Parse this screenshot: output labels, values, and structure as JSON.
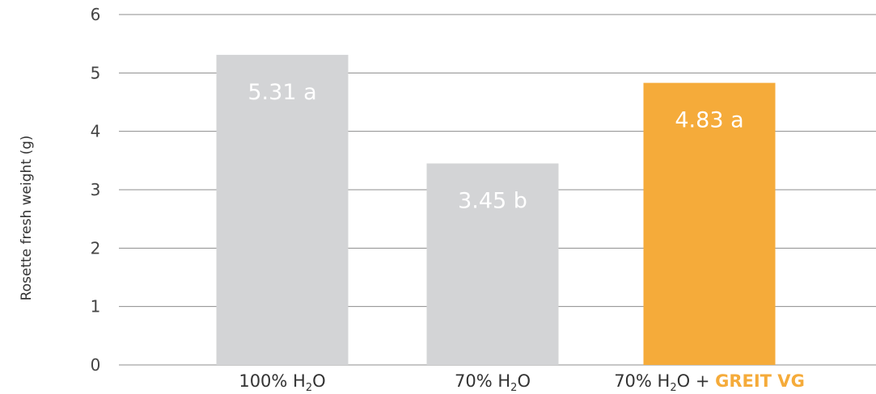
{
  "chart_data": {
    "type": "bar",
    "ylabel": "Rosette fresh weight (g)",
    "ylim": [
      0,
      6
    ],
    "yticks": [
      "0",
      "1",
      "2",
      "3",
      "4",
      "5",
      "6"
    ],
    "grid": true,
    "categories": [
      {
        "prefix": "100% H",
        "sub": "2",
        "suffix": "O",
        "brand": ""
      },
      {
        "prefix": "70% H",
        "sub": "2",
        "suffix": "O",
        "brand": ""
      },
      {
        "prefix": "70% H",
        "sub": "2",
        "suffix": "O + ",
        "brand": "GREIT VG"
      }
    ],
    "values": [
      5.31,
      3.45,
      4.83
    ],
    "labels": [
      "5.31 a",
      "3.45 b",
      "4.83 a"
    ],
    "colors": [
      "#d3d4d6",
      "#d3d4d6",
      "#f5ab3a"
    ],
    "brand_color": "#f5ab3a"
  }
}
